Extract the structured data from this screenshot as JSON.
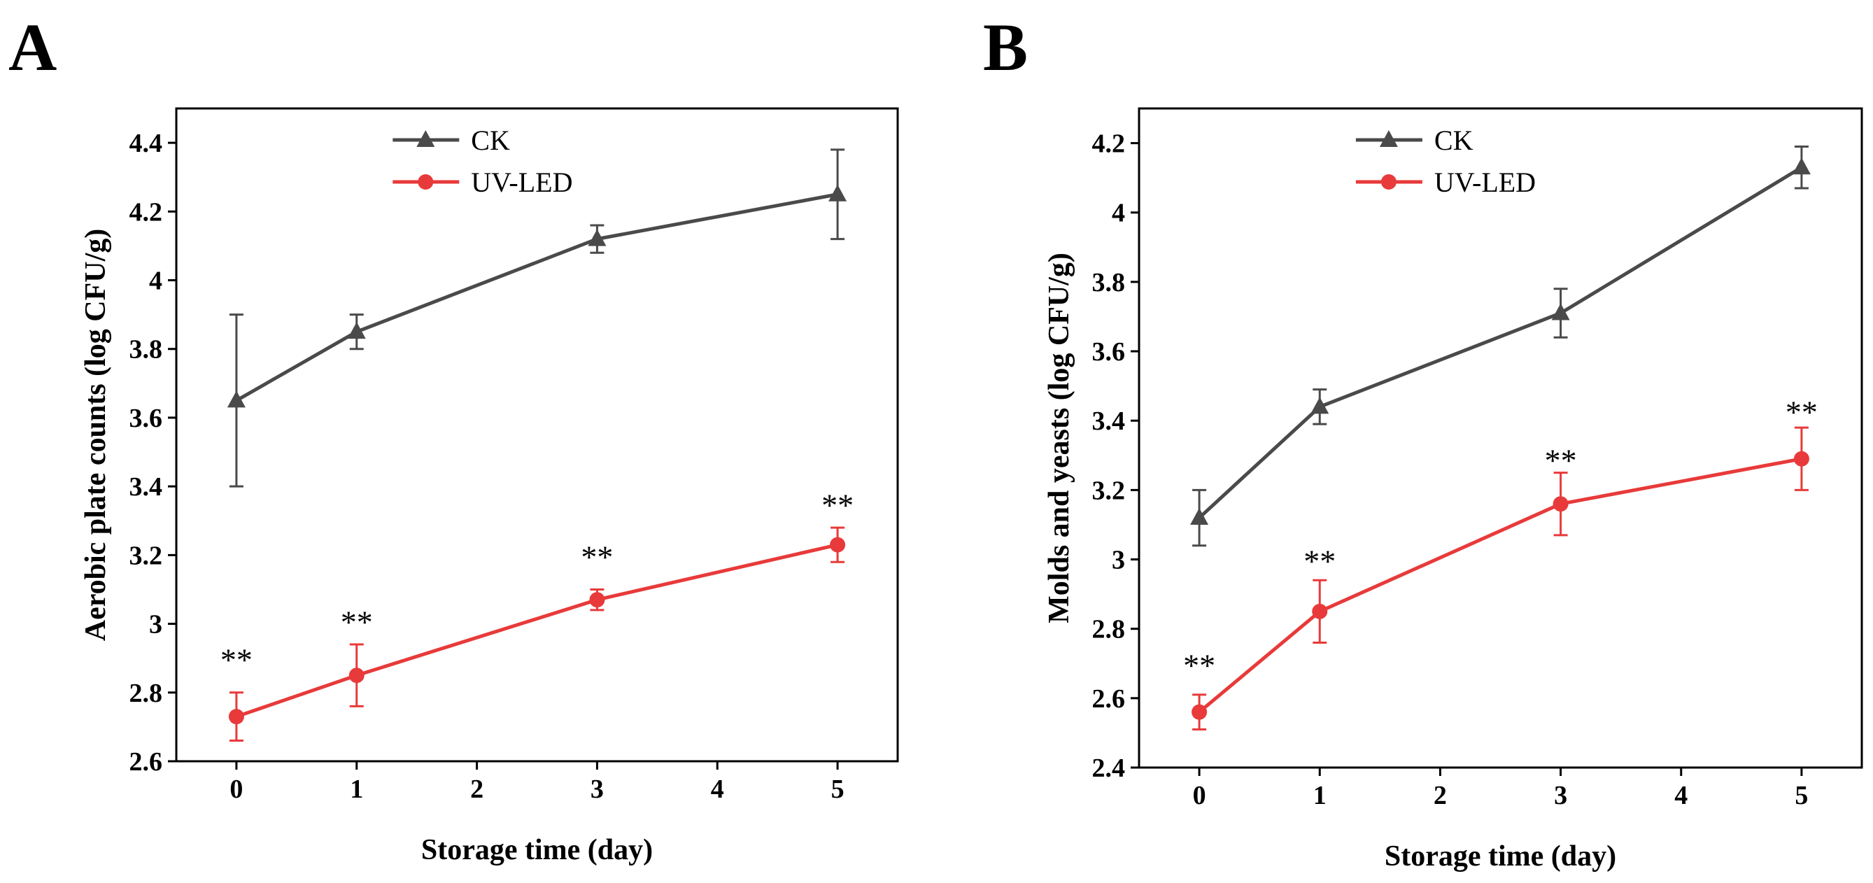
{
  "colors": {
    "ck": "#4a4a4a",
    "uv": "#e83a3a",
    "axis": "#000000"
  },
  "chart_data": [
    {
      "type": "line",
      "panel": "A",
      "xlabel": "Storage time (day)",
      "ylabel": "Aerobic plate counts (log CFU/g)",
      "xlim": [
        -0.5,
        5.5
      ],
      "ylim": [
        2.6,
        4.5
      ],
      "xticks": [
        0,
        1,
        2,
        3,
        4,
        5
      ],
      "yticks": [
        2.6,
        2.8,
        3.0,
        3.2,
        3.4,
        3.6,
        3.8,
        4.0,
        4.2,
        4.4
      ],
      "legend": "top-center",
      "series": [
        {
          "name": "CK",
          "marker": "triangle",
          "color": "#4a4a4a",
          "x": [
            0,
            1,
            3,
            5
          ],
          "y": [
            3.65,
            3.85,
            4.12,
            4.25
          ],
          "err": [
            0.25,
            0.05,
            0.04,
            0.13
          ]
        },
        {
          "name": "UV-LED",
          "marker": "circle",
          "color": "#e83a3a",
          "x": [
            0,
            1,
            3,
            5
          ],
          "y": [
            2.73,
            2.85,
            3.07,
            3.23
          ],
          "err": [
            0.07,
            0.09,
            0.03,
            0.05
          ]
        }
      ],
      "annotations": [
        {
          "text": "**",
          "x": 0,
          "y": 2.9
        },
        {
          "text": "**",
          "x": 1,
          "y": 3.01
        },
        {
          "text": "**",
          "x": 3,
          "y": 3.2
        },
        {
          "text": "**",
          "x": 5,
          "y": 3.35
        }
      ]
    },
    {
      "type": "line",
      "panel": "B",
      "xlabel": "Storage time (day)",
      "ylabel": "Molds and yeasts (log CFU/g)",
      "xlim": [
        -0.5,
        5.5
      ],
      "ylim": [
        2.4,
        4.3
      ],
      "xticks": [
        0,
        1,
        2,
        3,
        4,
        5
      ],
      "yticks": [
        2.4,
        2.6,
        2.8,
        3.0,
        3.2,
        3.4,
        3.6,
        3.8,
        4.0,
        4.2
      ],
      "legend": "top-center",
      "series": [
        {
          "name": "CK",
          "marker": "triangle",
          "color": "#4a4a4a",
          "x": [
            0,
            1,
            3,
            5
          ],
          "y": [
            3.12,
            3.44,
            3.71,
            4.13
          ],
          "err": [
            0.08,
            0.05,
            0.07,
            0.06
          ]
        },
        {
          "name": "UV-LED",
          "marker": "circle",
          "color": "#e83a3a",
          "x": [
            0,
            1,
            3,
            5
          ],
          "y": [
            2.56,
            2.85,
            3.16,
            3.29
          ],
          "err": [
            0.05,
            0.09,
            0.09,
            0.09
          ]
        }
      ],
      "annotations": [
        {
          "text": "**",
          "x": 0,
          "y": 2.7
        },
        {
          "text": "**",
          "x": 1,
          "y": 3.0
        },
        {
          "text": "**",
          "x": 3,
          "y": 3.29
        },
        {
          "text": "**",
          "x": 5,
          "y": 3.43
        }
      ]
    }
  ]
}
